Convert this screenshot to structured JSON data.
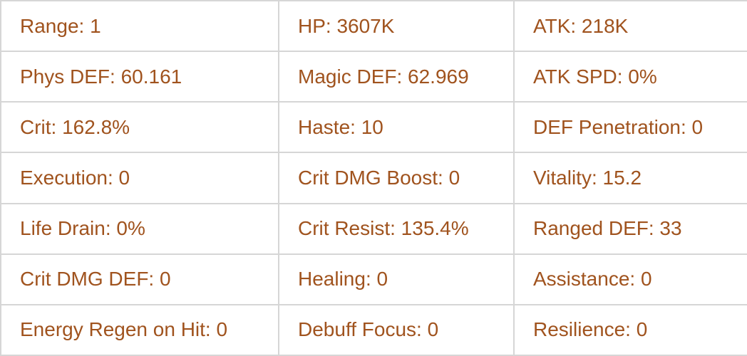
{
  "stats": [
    [
      "Range: 1",
      "HP: 3607K",
      "ATK: 218K"
    ],
    [
      "Phys DEF: 60.161",
      "Magic DEF: 62.969",
      "ATK SPD: 0%"
    ],
    [
      "Crit: 162.8%",
      "Haste: 10",
      "DEF Penetration: 0"
    ],
    [
      "Execution: 0",
      "Crit DMG Boost: 0",
      "Vitality: 15.2"
    ],
    [
      "Life Drain: 0%",
      "Crit Resist: 135.4%",
      "Ranged DEF: 33"
    ],
    [
      "Crit DMG DEF: 0",
      "Healing: 0",
      "Assistance: 0"
    ],
    [
      "Energy Regen on Hit: 0",
      "Debuff Focus: 0",
      "Resilience: 0"
    ]
  ],
  "colors": {
    "text": "#a0531e",
    "border": "#d6d6d6"
  }
}
